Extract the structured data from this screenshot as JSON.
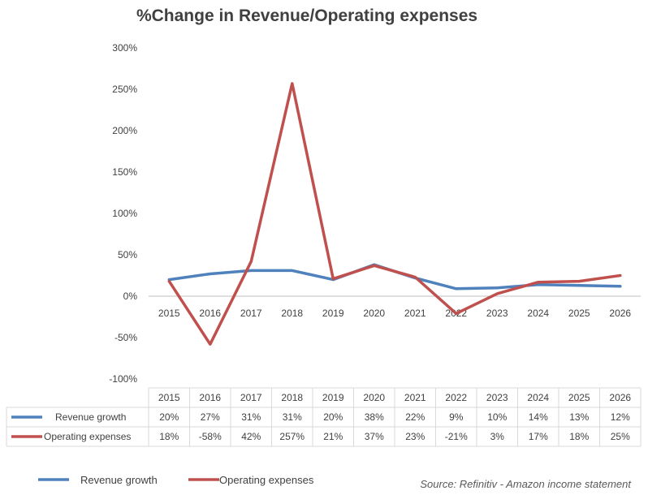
{
  "chart_data": {
    "type": "line",
    "title": "%Change in Revenue/Operating expenses",
    "categories": [
      "2015",
      "2016",
      "2017",
      "2018",
      "2019",
      "2020",
      "2021",
      "2022",
      "2023",
      "2024",
      "2025",
      "2026"
    ],
    "series": [
      {
        "name": "Revenue growth",
        "color": "#4F81BD",
        "values": [
          20,
          27,
          31,
          31,
          20,
          38,
          22,
          9,
          10,
          14,
          13,
          12
        ],
        "labels": [
          "20%",
          "27%",
          "31%",
          "31%",
          "20%",
          "38%",
          "22%",
          "9%",
          "10%",
          "14%",
          "13%",
          "12%"
        ]
      },
      {
        "name": "Operating expenses",
        "color": "#C0504D",
        "values": [
          18,
          -58,
          42,
          257,
          21,
          37,
          23,
          -21,
          3,
          17,
          18,
          25
        ],
        "labels": [
          "18%",
          "-58%",
          "42%",
          "257%",
          "21%",
          "37%",
          "23%",
          "-21%",
          "3%",
          "17%",
          "18%",
          "25%"
        ]
      }
    ],
    "ylim": [
      -100,
      300
    ],
    "yticks": [
      300,
      250,
      200,
      150,
      100,
      50,
      0,
      -50,
      -100
    ],
    "ytick_labels": [
      "300%",
      "250%",
      "200%",
      "150%",
      "100%",
      "50%",
      "0%",
      "-50%",
      "-100%"
    ],
    "grid": false,
    "data_table": true,
    "legend": "bottom-left",
    "source": "Source:  Refinitiv - Amazon income statement"
  }
}
